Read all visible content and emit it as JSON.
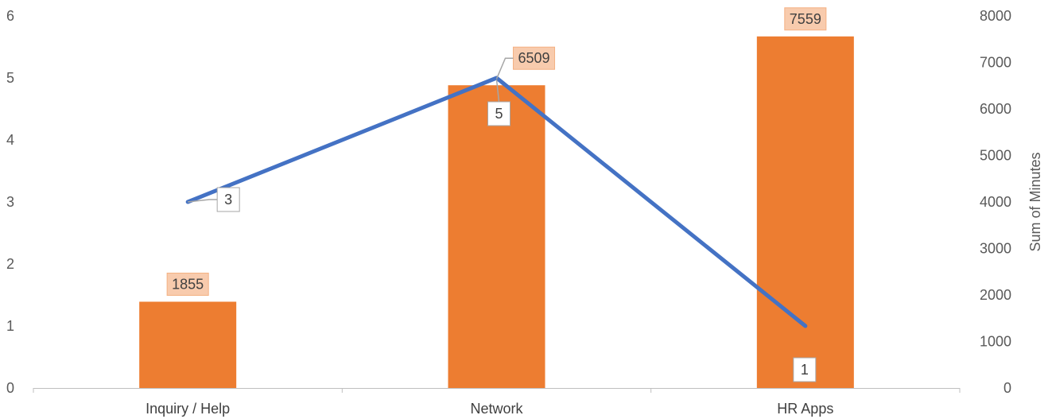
{
  "chart_data": {
    "type": "bar",
    "categories": [
      "Inquiry / Help",
      "Network",
      "HR Apps"
    ],
    "series": [
      {
        "kind": "bar",
        "axis": "right",
        "values": [
          1855,
          6509,
          7559
        ],
        "color": "#ED7D31",
        "label_bg": "#F8CBAD",
        "label_border": "#F4B183"
      },
      {
        "kind": "line",
        "axis": "left",
        "values": [
          3,
          5,
          1
        ],
        "color": "#4472C4",
        "label_bg": "#FFFFFF",
        "label_border": "#A6A6A6"
      }
    ],
    "y_left": {
      "ticks": [
        "0",
        "1",
        "2",
        "3",
        "4",
        "5",
        "6"
      ],
      "ylim": [
        0,
        6
      ]
    },
    "y_right": {
      "ticks": [
        "0",
        "1000",
        "2000",
        "3000",
        "4000",
        "5000",
        "6000",
        "7000",
        "8000"
      ],
      "ylim": [
        0,
        8000
      ],
      "label": "Sum of Minutes"
    },
    "grid": false,
    "legend": "none"
  }
}
